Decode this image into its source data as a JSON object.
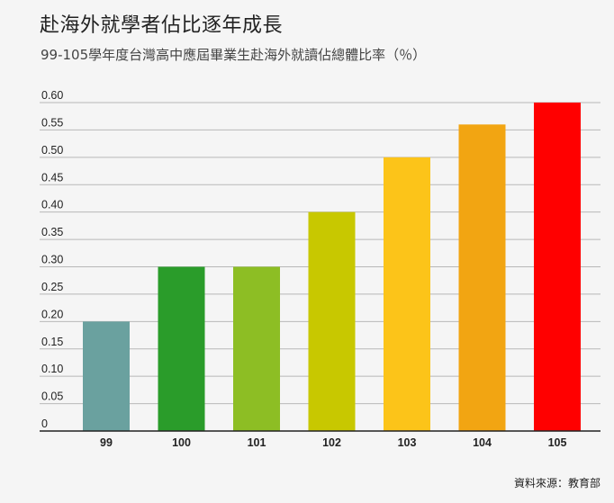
{
  "title": "赴海外就學者佔比逐年成長",
  "subtitle": "99-105學年度台灣高中應屆畢業生赴海外就讀佔總體比率（％）",
  "source": "資料來源：教育部",
  "colors": {
    "background": "#f5f5f5",
    "grid": "#b8b8b8",
    "baseline": "#222222"
  },
  "chart_data": {
    "type": "bar",
    "title": "赴海外就學者佔比逐年成長",
    "subtitle": "99-105學年度台灣高中應屆畢業生赴海外就讀佔總體比率（％）",
    "xlabel": "",
    "ylabel": "",
    "categories": [
      "99",
      "100",
      "101",
      "102",
      "103",
      "104",
      "105"
    ],
    "values": [
      0.2,
      0.3,
      0.3,
      0.4,
      0.5,
      0.56,
      0.6
    ],
    "bar_colors": [
      "#6aa19f",
      "#2a9c2a",
      "#8dbe24",
      "#c8c800",
      "#fcc419",
      "#f2a512",
      "#ff0000"
    ],
    "ylim": [
      0,
      0.6
    ],
    "yticks": [
      "0",
      "0.05",
      "0.10",
      "0.15",
      "0.20",
      "0.25",
      "0.30",
      "0.35",
      "0.40",
      "0.45",
      "0.50",
      "0.55",
      "0.60"
    ],
    "grid": true,
    "legend": "none"
  }
}
